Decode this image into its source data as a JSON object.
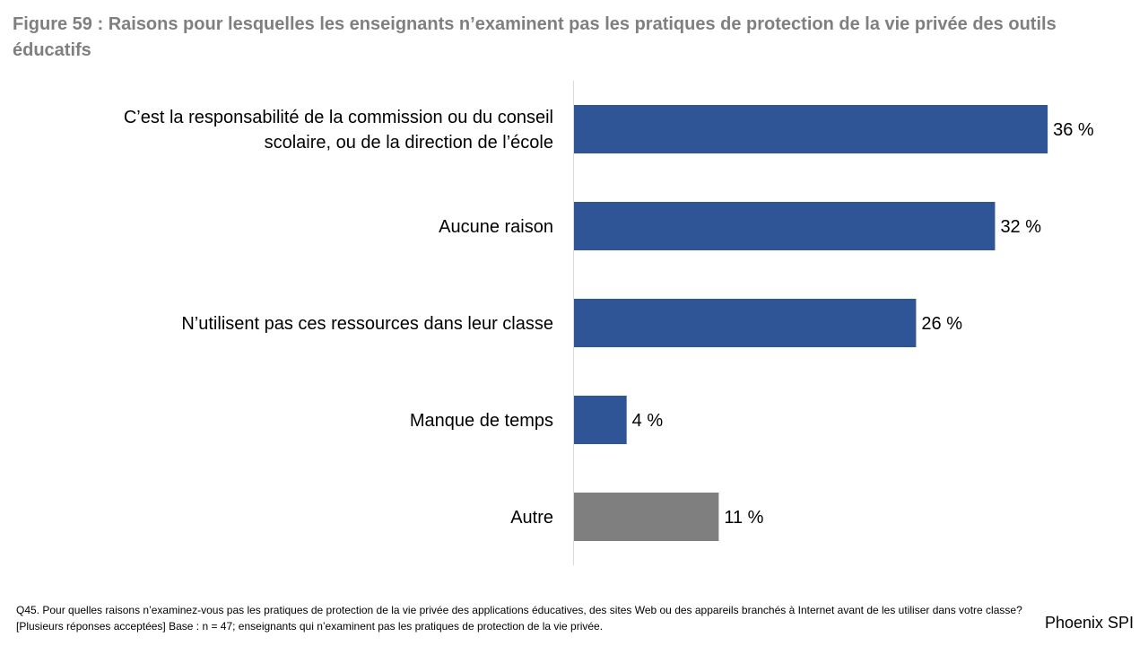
{
  "title": "Figure 59 : Raisons pour lesquelles les enseignants n’examinent pas les pratiques de protection de la vie privée des outils éducatifs",
  "chart_data": {
    "type": "bar",
    "orientation": "horizontal",
    "categories": [
      "C’est la responsabilité de la commission ou du conseil scolaire, ou de la direction de l’école",
      "Aucune raison",
      "N’utilisent pas ces ressources dans leur classe",
      "Manque de temps",
      "Autre"
    ],
    "category_lines": [
      [
        "C’est la responsabilité de la commission ou du conseil",
        "scolaire, ou de la direction de l’école"
      ],
      [
        "Aucune raison"
      ],
      [
        "N’utilisent pas ces ressources dans leur classe"
      ],
      [
        "Manque de temps"
      ],
      [
        "Autre"
      ]
    ],
    "values": [
      36,
      32,
      26,
      4,
      11
    ],
    "value_labels": [
      "36 %",
      "32 %",
      "26 %",
      "4 %",
      "11 %"
    ],
    "colors": [
      "#2f5597",
      "#2f5597",
      "#2f5597",
      "#2f5597",
      "#7f7f7f"
    ],
    "xlim": [
      0,
      40
    ],
    "grid": false,
    "legend": "none"
  },
  "footnote": "Q45. Pour quelles raisons n’examinez-vous pas les pratiques de protection de la vie privée des applications éducatives, des sites Web ou des appareils branchés à Internet avant de les utiliser dans votre classe? [Plusieurs réponses acceptées] Base : n = 47; enseignants qui n’examinent pas les pratiques de protection de la vie privée.",
  "brand": "Phoenix SPI"
}
